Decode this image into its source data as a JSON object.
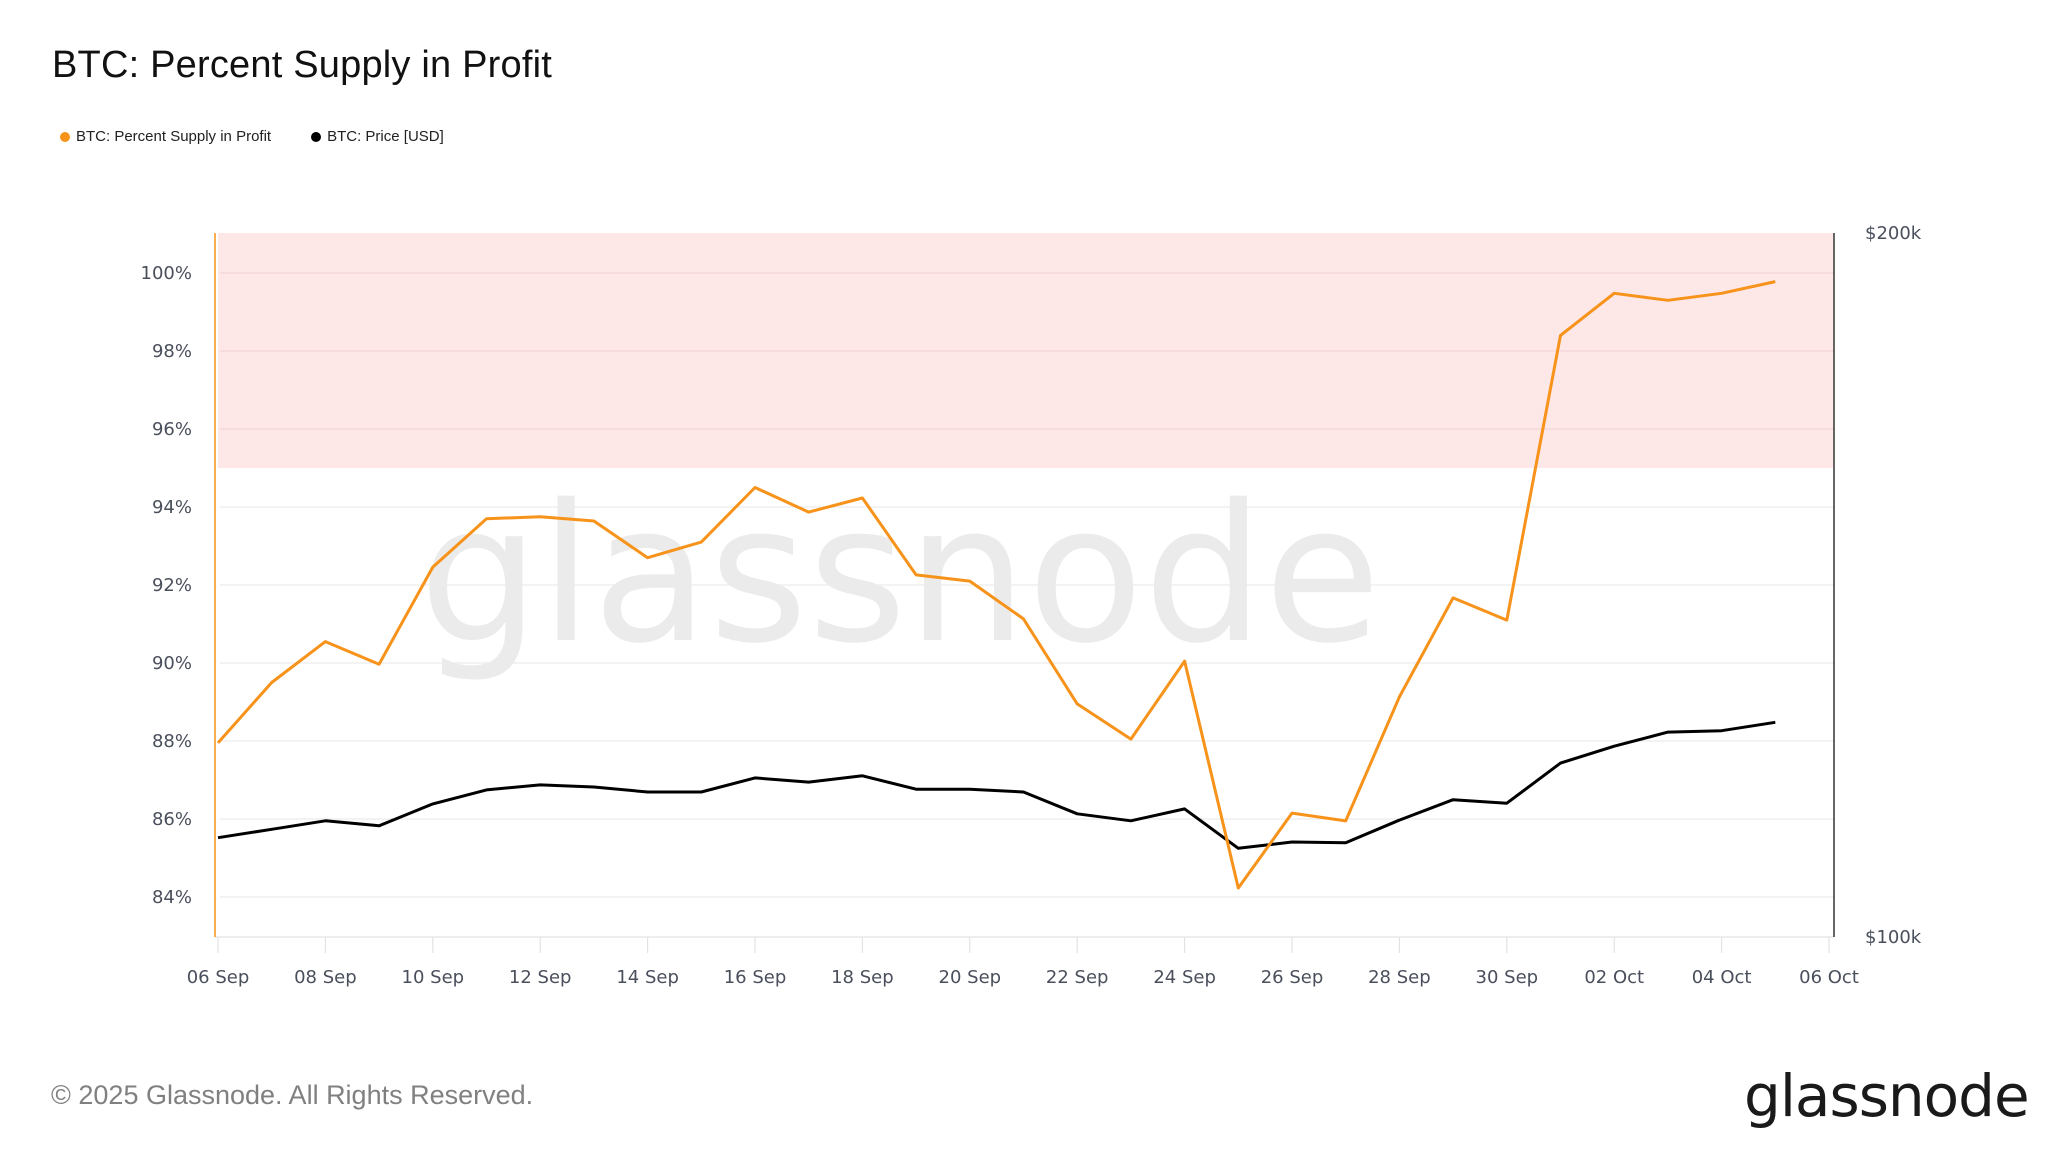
{
  "header": {
    "title": "BTC: Percent Supply in Profit"
  },
  "legend": [
    {
      "label": "BTC: Percent Supply in Profit",
      "color": "#f7931a"
    },
    {
      "label": "BTC: Price [USD]",
      "color": "#000000"
    }
  ],
  "footer": {
    "copyright": "© 2025 Glassnode. All Rights Reserved.",
    "logo": "glassnode"
  },
  "watermark": "glassnode",
  "colors": {
    "supply": "#f7931a",
    "price": "#000000",
    "band": "#fde7e7",
    "grid": "#ececec",
    "axis_text": "#4a4f5c"
  },
  "chart_data": {
    "type": "line",
    "title": "BTC: Percent Supply in Profit",
    "xlabel": "",
    "ylabel": "",
    "x": [
      "06 Sep",
      "07 Sep",
      "08 Sep",
      "09 Sep",
      "10 Sep",
      "11 Sep",
      "12 Sep",
      "13 Sep",
      "14 Sep",
      "15 Sep",
      "16 Sep",
      "17 Sep",
      "18 Sep",
      "19 Sep",
      "20 Sep",
      "21 Sep",
      "22 Sep",
      "23 Sep",
      "24 Sep",
      "25 Sep",
      "26 Sep",
      "27 Sep",
      "28 Sep",
      "29 Sep",
      "30 Sep",
      "01 Oct",
      "02 Oct",
      "03 Oct",
      "04 Oct",
      "05 Oct"
    ],
    "x_ticks": [
      "06 Sep",
      "08 Sep",
      "10 Sep",
      "12 Sep",
      "14 Sep",
      "16 Sep",
      "18 Sep",
      "20 Sep",
      "22 Sep",
      "24 Sep",
      "26 Sep",
      "28 Sep",
      "30 Sep",
      "02 Oct",
      "04 Oct",
      "06 Oct"
    ],
    "series": [
      {
        "name": "BTC: Percent Supply in Profit",
        "axis": "left",
        "unit": "%",
        "color": "#f7931a",
        "values": [
          87.95,
          89.5,
          90.55,
          89.97,
          92.46,
          93.7,
          93.75,
          93.64,
          92.7,
          93.1,
          94.5,
          93.87,
          94.23,
          92.26,
          92.1,
          91.13,
          88.95,
          88.05,
          90.05,
          84.23,
          86.15,
          85.95,
          89.13,
          91.67,
          91.1,
          98.4,
          99.48,
          99.3,
          99.48,
          99.78
        ]
      },
      {
        "name": "BTC: Price [USD]",
        "axis": "right",
        "unit": "USD (thousands)",
        "color": "#000000",
        "values": [
          114.1,
          115.3,
          116.5,
          115.8,
          118.9,
          120.9,
          121.6,
          121.3,
          120.6,
          120.6,
          122.6,
          122.0,
          122.9,
          121.0,
          121.0,
          120.6,
          117.5,
          116.5,
          118.2,
          112.6,
          113.5,
          113.4,
          116.6,
          119.5,
          119.0,
          124.7,
          127.1,
          129.1,
          129.3,
          130.5
        ]
      }
    ],
    "y_left": {
      "ticks": [
        "84%",
        "86%",
        "88%",
        "90%",
        "92%",
        "94%",
        "96%",
        "98%",
        "100%"
      ],
      "range": [
        83,
        101
      ]
    },
    "y_right": {
      "ticks": [
        "$100k",
        "$200k"
      ],
      "range": [
        100,
        200
      ]
    },
    "annotations": [
      {
        "type": "band",
        "from": 95,
        "to": 101,
        "color": "#fde7e7",
        "axis": "left"
      }
    ],
    "grid": true,
    "legend_position": "top-left"
  }
}
